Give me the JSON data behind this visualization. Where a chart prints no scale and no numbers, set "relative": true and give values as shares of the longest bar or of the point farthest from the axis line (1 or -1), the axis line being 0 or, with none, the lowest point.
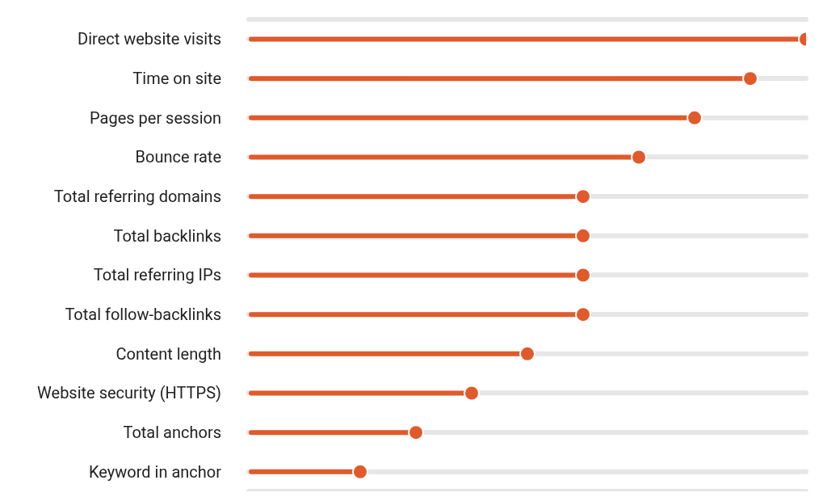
{
  "chart_data": {
    "type": "lollipop",
    "relative": true,
    "orientation": "horizontal",
    "color": "#e05a2b",
    "grid": "y",
    "categories": [
      "Direct website visits",
      "Time on site",
      "Pages per session",
      "Bounce rate",
      "Total referring domains",
      "Total backlinks",
      "Total referring IPs",
      "Total follow-backlinks",
      "Content length",
      "Website security (HTTPS)",
      "Total anchors",
      "Keyword in anchor"
    ],
    "values": [
      1,
      0.9,
      0.8,
      0.7,
      0.6,
      0.6,
      0.6,
      0.6,
      0.5,
      0.4,
      0.3,
      0.2
    ]
  }
}
